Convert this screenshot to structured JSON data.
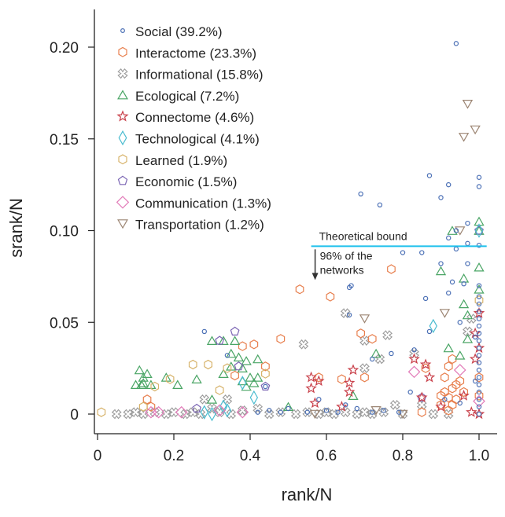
{
  "chart_data": {
    "type": "scatter",
    "xlabel": "rank/N",
    "ylabel": "srank/N",
    "xlim": [
      0,
      1.03
    ],
    "ylim": [
      -0.003,
      0.22
    ],
    "xticks": [
      "0",
      "0.2",
      "0.4",
      "0.6",
      "0.8",
      "1.0"
    ],
    "xtick_values": [
      0,
      0.2,
      0.4,
      0.6,
      0.8,
      1.0
    ],
    "yticks": [
      "0",
      "0.05",
      "0.10",
      "0.15",
      "0.20"
    ],
    "ytick_values": [
      0,
      0.05,
      0.1,
      0.15,
      0.2
    ],
    "grid": false,
    "legend_position": "top-left",
    "annotations": {
      "bound_label": "Theoretical bound",
      "bound_y": 0.0915,
      "bound_x_range": [
        0.56,
        1.02
      ],
      "bound_color": "#1ec0ec",
      "arrow_note_line1": "96% of the",
      "arrow_note_line2": "networks"
    },
    "series": [
      {
        "name": "Social (39.2%)",
        "marker": "circle",
        "color": "#4a6fb5",
        "points": [
          [
            0.94,
            0.202
          ],
          [
            0.69,
            0.12
          ],
          [
            0.74,
            0.114
          ],
          [
            0.87,
            0.13
          ],
          [
            0.92,
            0.125
          ],
          [
            0.9,
            0.118
          ],
          [
            1.0,
            0.129
          ],
          [
            1.0,
            0.124
          ],
          [
            0.97,
            0.104
          ],
          [
            0.94,
            0.1
          ],
          [
            0.92,
            0.096
          ],
          [
            0.94,
            0.09
          ],
          [
            0.97,
            0.093
          ],
          [
            1.0,
            0.092
          ],
          [
            0.8,
            0.088
          ],
          [
            0.85,
            0.088
          ],
          [
            0.9,
            0.082
          ],
          [
            0.97,
            0.082
          ],
          [
            0.66,
            0.069
          ],
          [
            0.665,
            0.07
          ],
          [
            0.66,
            0.054
          ],
          [
            0.92,
            0.066
          ],
          [
            0.96,
            0.071
          ],
          [
            0.93,
            0.072
          ],
          [
            0.86,
            0.063
          ],
          [
            0.95,
            0.05
          ],
          [
            0.87,
            0.045
          ],
          [
            0.83,
            0.035
          ],
          [
            0.72,
            0.03
          ],
          [
            0.77,
            0.033
          ],
          [
            0.28,
            0.045
          ],
          [
            0.34,
            0.032
          ],
          [
            0.44,
            0.015
          ],
          [
            0.58,
            0.008
          ],
          [
            0.65,
            0.005
          ],
          [
            0.82,
            0.012
          ],
          [
            0.91,
            0.008
          ],
          [
            0.95,
            0.006
          ],
          [
            0.42,
            0.001
          ],
          [
            0.45,
            0.002
          ],
          [
            0.48,
            0.001
          ],
          [
            0.5,
            0.003
          ],
          [
            0.55,
            0.001
          ],
          [
            0.6,
            0.002
          ],
          [
            0.63,
            0.001
          ],
          [
            0.68,
            0.003
          ],
          [
            0.72,
            0.001
          ],
          [
            0.75,
            0.002
          ],
          [
            0.79,
            0.001
          ],
          [
            1.0,
            0.0
          ],
          [
            1.0,
            0.004
          ],
          [
            1.0,
            0.008
          ],
          [
            1.0,
            0.012
          ],
          [
            1.0,
            0.016
          ],
          [
            1.0,
            0.02
          ],
          [
            1.0,
            0.024
          ],
          [
            1.0,
            0.028
          ],
          [
            1.0,
            0.032
          ],
          [
            1.0,
            0.036
          ],
          [
            1.0,
            0.04
          ],
          [
            1.0,
            0.044
          ],
          [
            1.0,
            0.048
          ],
          [
            1.0,
            0.052
          ],
          [
            1.0,
            0.056
          ],
          [
            1.0,
            0.06
          ],
          [
            1.0,
            0.064
          ],
          [
            1.0,
            0.07
          ],
          [
            0.99,
            0.042
          ],
          [
            0.99,
            0.018
          ]
        ]
      },
      {
        "name": "Interactome (23.3%)",
        "marker": "hexagon",
        "color": "#e8804f",
        "points": [
          [
            0.53,
            0.068
          ],
          [
            0.61,
            0.064
          ],
          [
            0.77,
            0.079
          ],
          [
            0.48,
            0.041
          ],
          [
            0.38,
            0.037
          ],
          [
            0.41,
            0.038
          ],
          [
            0.69,
            0.044
          ],
          [
            0.72,
            0.041
          ],
          [
            0.44,
            0.026
          ],
          [
            0.36,
            0.021
          ],
          [
            0.58,
            0.02
          ],
          [
            0.64,
            0.019
          ],
          [
            0.7,
            0.02
          ],
          [
            0.86,
            0.025
          ],
          [
            0.92,
            0.026
          ],
          [
            0.93,
            0.03
          ],
          [
            0.9,
            0.01
          ],
          [
            0.91,
            0.012
          ],
          [
            0.92,
            0.009
          ],
          [
            0.93,
            0.014
          ],
          [
            0.94,
            0.016
          ],
          [
            0.95,
            0.018
          ],
          [
            0.9,
            0.005
          ],
          [
            0.93,
            0.005
          ],
          [
            0.13,
            0.008
          ],
          [
            0.14,
            0.004
          ],
          [
            0.85,
            0.001
          ],
          [
            1.0,
            0.02
          ],
          [
            1.0,
            0.01
          ],
          [
            0.91,
            0.02
          ],
          [
            0.92,
            0.002
          ],
          [
            0.94,
            0.008
          ],
          [
            0.96,
            0.012
          ]
        ]
      },
      {
        "name": "Informational (15.8%)",
        "marker": "cross",
        "color": "#9a9a9a",
        "points": [
          [
            0.05,
            0.0
          ],
          [
            0.08,
            0.0
          ],
          [
            0.1,
            0.001
          ],
          [
            0.12,
            0.0
          ],
          [
            0.15,
            0.001
          ],
          [
            0.18,
            0.0
          ],
          [
            0.2,
            0.001
          ],
          [
            0.23,
            0.0
          ],
          [
            0.25,
            0.001
          ],
          [
            0.27,
            0.0
          ],
          [
            0.3,
            0.003
          ],
          [
            0.32,
            0.001
          ],
          [
            0.35,
            0.0
          ],
          [
            0.38,
            0.002
          ],
          [
            0.42,
            0.003
          ],
          [
            0.45,
            0.0
          ],
          [
            0.48,
            0.001
          ],
          [
            0.52,
            0.0
          ],
          [
            0.55,
            0.001
          ],
          [
            0.58,
            0.0
          ],
          [
            0.6,
            0.001
          ],
          [
            0.62,
            0.0
          ],
          [
            0.65,
            0.001
          ],
          [
            0.68,
            0.0
          ],
          [
            0.7,
            0.001
          ],
          [
            0.72,
            0.0
          ],
          [
            0.75,
            0.001
          ],
          [
            0.78,
            0.005
          ],
          [
            0.8,
            0.0
          ],
          [
            0.88,
            0.0
          ],
          [
            0.92,
            0.0
          ],
          [
            0.54,
            0.038
          ],
          [
            0.65,
            0.055
          ],
          [
            0.7,
            0.04
          ],
          [
            0.76,
            0.043
          ],
          [
            0.83,
            0.033
          ],
          [
            0.74,
            0.03
          ],
          [
            0.7,
            0.025
          ],
          [
            0.97,
            0.045
          ],
          [
            0.98,
            0.052
          ],
          [
            0.85,
            0.005
          ],
          [
            0.28,
            0.008
          ],
          [
            0.34,
            0.008
          ]
        ]
      },
      {
        "name": "Ecological (7.2%)",
        "marker": "triangle",
        "color": "#4aa565",
        "points": [
          [
            0.11,
            0.024
          ],
          [
            0.12,
            0.02
          ],
          [
            0.13,
            0.022
          ],
          [
            0.115,
            0.016
          ],
          [
            0.12,
            0.017
          ],
          [
            0.14,
            0.016
          ],
          [
            0.1,
            0.016
          ],
          [
            0.18,
            0.02
          ],
          [
            0.21,
            0.016
          ],
          [
            0.26,
            0.019
          ],
          [
            0.3,
            0.04
          ],
          [
            0.33,
            0.04
          ],
          [
            0.36,
            0.04
          ],
          [
            0.35,
            0.033
          ],
          [
            0.37,
            0.031
          ],
          [
            0.35,
            0.026
          ],
          [
            0.38,
            0.025
          ],
          [
            0.39,
            0.029
          ],
          [
            0.42,
            0.03
          ],
          [
            0.4,
            0.02
          ],
          [
            0.41,
            0.017
          ],
          [
            0.42,
            0.02
          ],
          [
            0.38,
            0.018
          ],
          [
            0.39,
            0.015
          ],
          [
            0.33,
            0.022
          ],
          [
            0.3,
            0.008
          ],
          [
            0.5,
            0.004
          ],
          [
            0.67,
            0.01
          ],
          [
            0.73,
            0.033
          ],
          [
            0.96,
            0.06
          ],
          [
            0.97,
            0.054
          ],
          [
            0.97,
            0.041
          ],
          [
            0.92,
            0.036
          ],
          [
            0.95,
            0.032
          ],
          [
            1.0,
            0.068
          ],
          [
            1.0,
            0.08
          ],
          [
            0.96,
            0.074
          ],
          [
            0.9,
            0.078
          ],
          [
            1.0,
            0.105
          ],
          [
            0.93,
            0.1
          ],
          [
            1.0,
            0.1
          ]
        ]
      },
      {
        "name": "Connectome (4.6%)",
        "marker": "star",
        "color": "#c9414b",
        "points": [
          [
            0.56,
            0.02
          ],
          [
            0.58,
            0.018
          ],
          [
            0.56,
            0.014
          ],
          [
            0.57,
            0.006
          ],
          [
            0.67,
            0.024
          ],
          [
            0.66,
            0.017
          ],
          [
            0.66,
            0.012
          ],
          [
            0.64,
            0.004
          ],
          [
            0.83,
            0.03
          ],
          [
            0.86,
            0.027
          ],
          [
            0.87,
            0.02
          ],
          [
            0.85,
            0.009
          ],
          [
            0.9,
            0.004
          ],
          [
            0.96,
            0.01
          ],
          [
            0.99,
            0.044
          ],
          [
            1.0,
            0.036
          ],
          [
            1.0,
            0.055
          ],
          [
            0.99,
            0.03
          ],
          [
            0.98,
            0.001
          ],
          [
            1.0,
            0.0
          ]
        ]
      },
      {
        "name": "Technological (4.1%)",
        "marker": "diamond",
        "color": "#4bbcd0",
        "points": [
          [
            0.88,
            0.048
          ],
          [
            1.0,
            0.1
          ],
          [
            0.28,
            0.001
          ],
          [
            0.34,
            0.002
          ],
          [
            0.33,
            0.004
          ],
          [
            0.41,
            0.009
          ],
          [
            0.3,
            0.0
          ],
          [
            0.38,
            0.017
          ]
        ]
      },
      {
        "name": "Learned (1.9%)",
        "marker": "hexagon",
        "color": "#d7b36b",
        "points": [
          [
            0.01,
            0.001
          ],
          [
            0.25,
            0.027
          ],
          [
            0.29,
            0.027
          ],
          [
            0.19,
            0.019
          ],
          [
            0.12,
            0.004
          ],
          [
            0.34,
            0.025
          ],
          [
            0.44,
            0.022
          ],
          [
            1.0,
            0.062
          ],
          [
            0.32,
            0.013
          ],
          [
            0.15,
            0.015
          ]
        ]
      },
      {
        "name": "Economic (1.5%)",
        "marker": "pentagon",
        "color": "#7a64b3",
        "points": [
          [
            0.36,
            0.045
          ],
          [
            0.32,
            0.04
          ],
          [
            0.37,
            0.026
          ],
          [
            0.26,
            0.003
          ],
          [
            0.85,
            0.009
          ],
          [
            1.0,
            0.1
          ],
          [
            0.44,
            0.015
          ]
        ]
      },
      {
        "name": "Communication (1.3%)",
        "marker": "diamond-wide",
        "color": "#e27ab8",
        "points": [
          [
            0.83,
            0.023
          ],
          [
            0.95,
            0.024
          ],
          [
            0.14,
            0.001
          ],
          [
            0.16,
            0.001
          ],
          [
            0.22,
            0.001
          ],
          [
            0.32,
            0.002
          ],
          [
            0.38,
            0.001
          ],
          [
            1.0,
            0.007
          ]
        ]
      },
      {
        "name": "Transportation (1.2%)",
        "marker": "triangle-down",
        "color": "#9c8573",
        "points": [
          [
            0.97,
            0.169
          ],
          [
            0.99,
            0.155
          ],
          [
            0.96,
            0.151
          ],
          [
            0.95,
            0.1
          ],
          [
            0.7,
            0.052
          ],
          [
            0.91,
            0.055
          ],
          [
            0.73,
            0.002
          ],
          [
            0.57,
            0.0
          ],
          [
            0.8,
            0.0
          ]
        ]
      }
    ]
  }
}
